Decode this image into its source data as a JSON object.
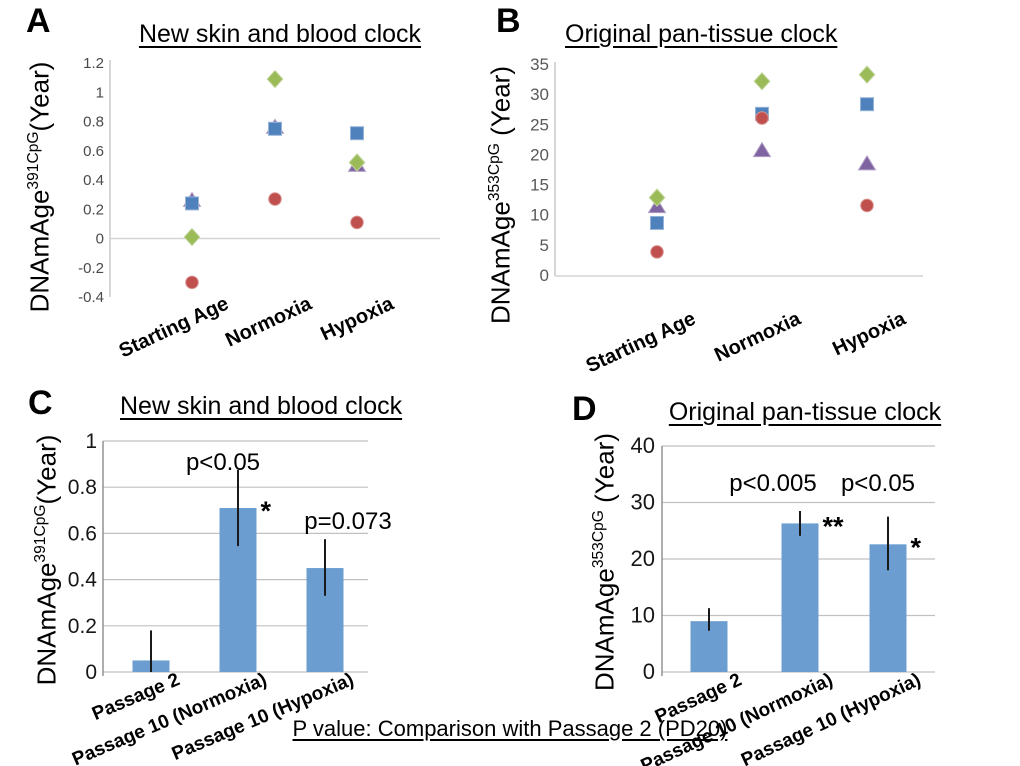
{
  "figure": {
    "panels": [
      {
        "letter": "A",
        "title": "New skin and blood clock",
        "ylabel_base": "DNAmAge",
        "ylabel_sup": "391CpG",
        "ylabel_rest": "(Year)"
      },
      {
        "letter": "B",
        "title": "Original pan-tissue clock",
        "ylabel_base": "DNAmAge",
        "ylabel_sup": "353CpG",
        "ylabel_rest": " (Year)"
      },
      {
        "letter": "C",
        "title": "New skin and blood clock",
        "ylabel_base": "DNAmAge",
        "ylabel_sup": "391CpG",
        "ylabel_rest": "(Year)"
      },
      {
        "letter": "D",
        "title": "Original pan-tissue clock",
        "ylabel_base": "DNAmAge",
        "ylabel_sup": "353CpG",
        "ylabel_rest": " (Year)"
      }
    ],
    "footnote": "P value: Comparison with Passage 2 (PD20)"
  },
  "colors": {
    "marker_red": "#C0504D",
    "marker_blue": "#4F81BD",
    "marker_purple": "#8064A2",
    "marker_green": "#9BBB59",
    "bar_blue": "#6C9DD1",
    "grid_gray": "#C1C1C1",
    "axis_gray": "#8C8C8C",
    "tick_gray": "#595959"
  },
  "chart_data": [
    {
      "type": "scatter",
      "panel": "A",
      "title": "New skin and blood clock",
      "ylabel": "DNAmAge^391CpG(Year)",
      "categories": [
        "Starting Age",
        "Normoxia",
        "Hypoxia"
      ],
      "ylim": [
        -0.4,
        1.2
      ],
      "baseline": 0,
      "grid": false,
      "legend": "none",
      "yticks": [
        {
          "v": 1.2,
          "label": "1.2"
        },
        {
          "v": 1.0,
          "label": "1"
        },
        {
          "v": 0.8,
          "label": "0.8"
        },
        {
          "v": 0.6,
          "label": "0.6"
        },
        {
          "v": 0.4,
          "label": "0.4"
        },
        {
          "v": 0.2,
          "label": "0.2"
        },
        {
          "v": 0.0,
          "label": "0"
        },
        {
          "v": -0.2,
          "label": "-0.2"
        },
        {
          "v": -0.4,
          "label": "-0.4"
        }
      ],
      "series": [
        {
          "name": "purple-triangle",
          "marker": "triangle",
          "color": "#8064A2",
          "edge": "#B1A0C7",
          "values": [
            0.26,
            0.76,
            0.5
          ]
        },
        {
          "name": "blue-square",
          "marker": "square",
          "color": "#4F81BD",
          "edge": "#95B3D7",
          "values": [
            0.24,
            0.75,
            0.72
          ]
        },
        {
          "name": "green-diamond",
          "marker": "diamond",
          "color": "#9BBB59",
          "edge": "#C2D69B",
          "values": [
            0.01,
            1.09,
            0.52
          ]
        },
        {
          "name": "red-circle",
          "marker": "circle",
          "color": "#C0504D",
          "edge": "#D99694",
          "values": [
            -0.3,
            0.27,
            0.11
          ]
        }
      ]
    },
    {
      "type": "scatter",
      "panel": "B",
      "title": "Original pan-tissue clock",
      "ylabel": "DNAmAge^353CpG (Year)",
      "categories": [
        "Starting Age",
        "Normoxia",
        "Hypoxia"
      ],
      "ylim": [
        0,
        35
      ],
      "baseline": 0,
      "grid": false,
      "legend": "none",
      "yticks": [
        {
          "v": 35,
          "label": "35"
        },
        {
          "v": 30,
          "label": "30"
        },
        {
          "v": 25,
          "label": "25"
        },
        {
          "v": 20,
          "label": "20"
        },
        {
          "v": 15,
          "label": "15"
        },
        {
          "v": 10,
          "label": "10"
        },
        {
          "v": 5,
          "label": "5"
        },
        {
          "v": 0,
          "label": "0"
        }
      ],
      "series": [
        {
          "name": "purple-triangle",
          "marker": "triangle",
          "color": "#8064A2",
          "edge": "#B1A0C7",
          "values": [
            11.5,
            20.8,
            18.6
          ]
        },
        {
          "name": "blue-square",
          "marker": "square",
          "color": "#4F81BD",
          "edge": "#95B3D7",
          "values": [
            8.8,
            26.9,
            28.5
          ]
        },
        {
          "name": "green-diamond",
          "marker": "diamond",
          "color": "#9BBB59",
          "edge": "#C2D69B",
          "values": [
            13.0,
            32.3,
            33.4
          ]
        },
        {
          "name": "red-circle",
          "marker": "circle",
          "color": "#C0504D",
          "edge": "#D99694",
          "values": [
            4.0,
            26.2,
            11.7
          ]
        }
      ]
    },
    {
      "type": "bar",
      "panel": "C",
      "title": "New skin and blood clock",
      "ylabel": "DNAmAge^391CpG(Year)",
      "categories": [
        "Passage 2",
        "Passage 10 (Normoxia)",
        "Passage 10 (Hypoxia)"
      ],
      "ylim": [
        0,
        1
      ],
      "grid": true,
      "bar_color": "#6C9DD1",
      "yticks": [
        {
          "v": 1.0,
          "label": "1"
        },
        {
          "v": 0.8,
          "label": "0.8"
        },
        {
          "v": 0.6,
          "label": "0.6"
        },
        {
          "v": 0.4,
          "label": "0.4"
        },
        {
          "v": 0.2,
          "label": "0.2"
        },
        {
          "v": 0.0,
          "label": "0"
        }
      ],
      "values": [
        0.05,
        0.71,
        0.45
      ],
      "error_top": [
        0.18,
        0.875,
        0.575
      ],
      "error_bottom": [
        0.0,
        0.545,
        0.33
      ],
      "annotations": [
        {
          "text": "p<0.05",
          "cat": 1,
          "dx": -15,
          "value": 0.875
        },
        {
          "text": "p=0.073",
          "cat": 2,
          "dx": 23,
          "value": 0.62
        }
      ],
      "significance": [
        {
          "text": "*",
          "cat": 1,
          "value": 0.71
        }
      ]
    },
    {
      "type": "bar",
      "panel": "D",
      "title": "Original pan-tissue clock",
      "ylabel": "DNAmAge^353CpG (Year)",
      "categories": [
        "Passage 2",
        "Passage 10 (Normoxia)",
        "Passage 10 (Hypoxia)"
      ],
      "ylim": [
        0,
        40
      ],
      "grid": true,
      "bar_color": "#6C9DD1",
      "yticks": [
        {
          "v": 40,
          "label": "40"
        },
        {
          "v": 30,
          "label": "30"
        },
        {
          "v": 20,
          "label": "20"
        },
        {
          "v": 10,
          "label": "10"
        },
        {
          "v": 0,
          "label": "0"
        }
      ],
      "values": [
        9.0,
        26.3,
        22.6
      ],
      "error_top": [
        11.3,
        28.5,
        27.5
      ],
      "error_bottom": [
        7.3,
        24.1,
        18.0
      ],
      "annotations": [
        {
          "text": "p<0.005",
          "cat": 1,
          "dx": -27,
          "value": 32
        },
        {
          "text": "p<0.05",
          "cat": 2,
          "dx": -10,
          "value": 32
        }
      ],
      "significance": [
        {
          "text": "**",
          "cat": 1,
          "value": 26.3
        },
        {
          "text": "*",
          "cat": 2,
          "value": 22.6
        }
      ]
    }
  ]
}
